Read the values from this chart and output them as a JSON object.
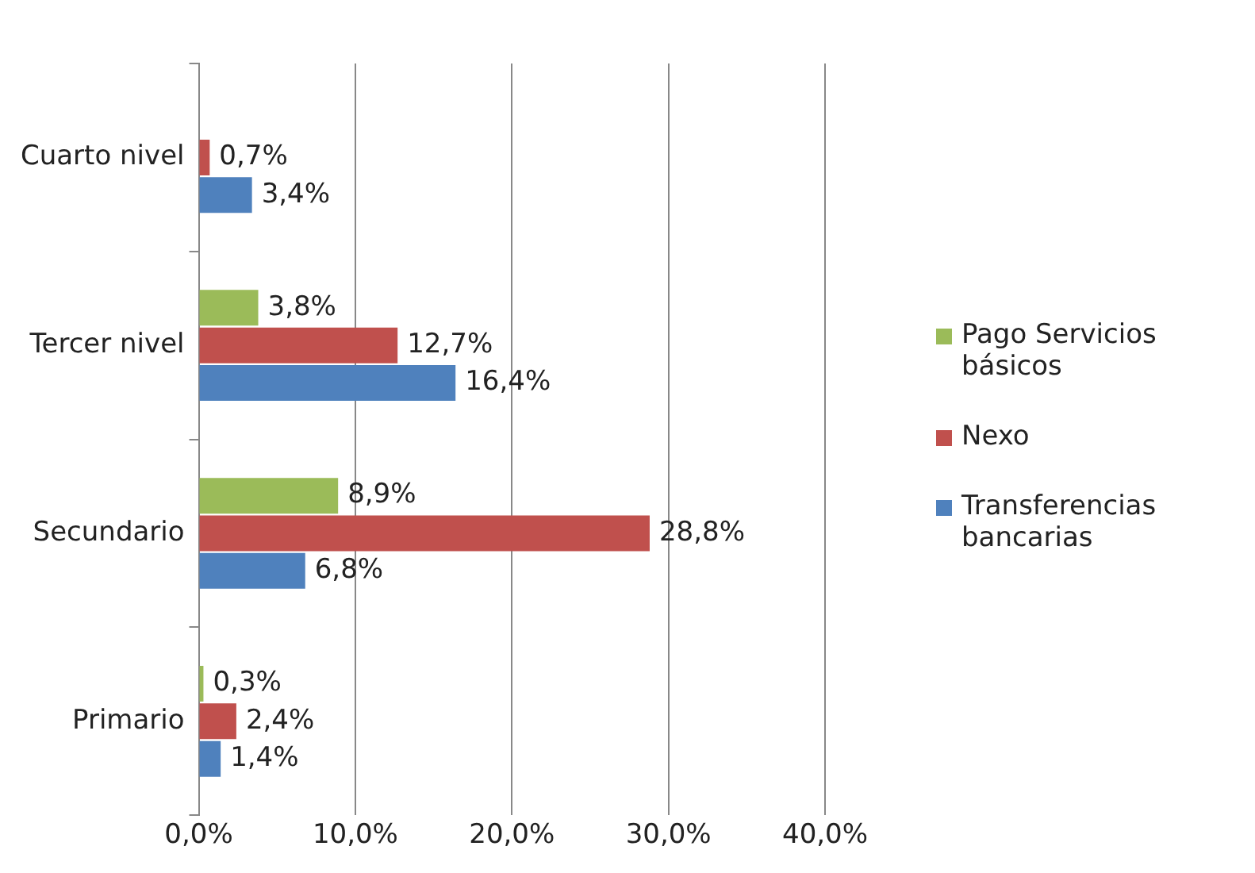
{
  "chart_data": {
    "type": "bar",
    "orientation": "horizontal",
    "categories": [
      "Cuarto nivel",
      "Tercer nivel",
      "Secundario",
      "Primario"
    ],
    "series": [
      {
        "name": "Pago Servicios básicos",
        "color": "#9bbb59",
        "values": [
          null,
          3.8,
          8.9,
          0.3
        ],
        "value_labels": [
          null,
          "3,8%",
          "8,9%",
          "0,3%"
        ]
      },
      {
        "name": "Nexo",
        "color": "#c0504d",
        "values": [
          0.7,
          12.7,
          28.8,
          2.4
        ],
        "value_labels": [
          "0,7%",
          "12,7%",
          "28,8%",
          "2,4%"
        ]
      },
      {
        "name": "Transferencias bancarias",
        "color": "#4f81bd",
        "values": [
          3.4,
          16.4,
          6.8,
          1.4
        ],
        "value_labels": [
          "3,4%",
          "16,4%",
          "6,8%",
          "1,4%"
        ]
      }
    ],
    "xlim": [
      0,
      40
    ],
    "xticks": [
      {
        "value": 0,
        "label": "0,0%"
      },
      {
        "value": 10,
        "label": "10,0%"
      },
      {
        "value": 20,
        "label": "20,0%"
      },
      {
        "value": 30,
        "label": "30,0%"
      },
      {
        "value": 40,
        "label": "40,0%"
      }
    ],
    "grid": "x",
    "legend": "right"
  }
}
